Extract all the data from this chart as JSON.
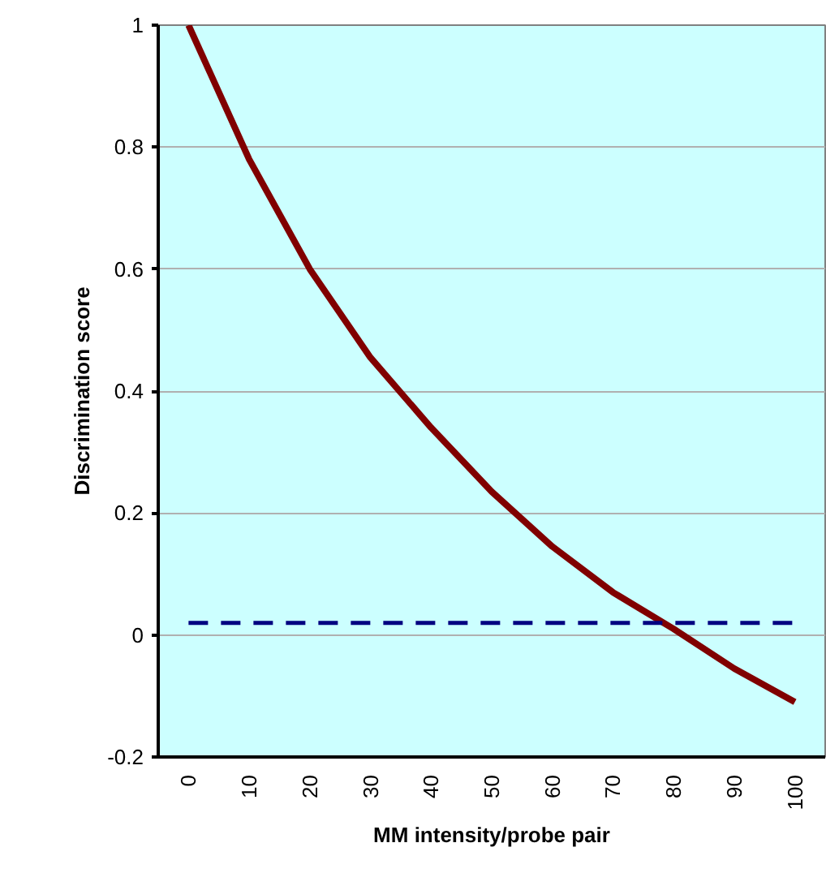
{
  "chart_data": {
    "type": "line",
    "xlabel": "MM intensity/probe pair",
    "ylabel": "Discrimination score",
    "categories": [
      "0",
      "10",
      "20",
      "30",
      "40",
      "50",
      "60",
      "70",
      "80",
      "90",
      "100"
    ],
    "series": [
      {
        "color": "#800000",
        "values": [
          1.0,
          0.78,
          0.6,
          0.455,
          0.34,
          0.235,
          0.145,
          0.07,
          0.01,
          -0.055,
          -0.11
        ]
      },
      {
        "color": "#000080",
        "line_style": "dashed",
        "values": [
          0.02,
          0.02,
          0.02,
          0.02,
          0.02,
          0.02,
          0.02,
          0.02,
          0.02,
          0.02,
          0.02
        ]
      }
    ],
    "ylim": [
      -0.2,
      1
    ],
    "yticks": [
      -0.2,
      0,
      0.2,
      0.4,
      0.6,
      0.8,
      1
    ],
    "grid": "y",
    "marker": "none",
    "line_style": "solid"
  }
}
